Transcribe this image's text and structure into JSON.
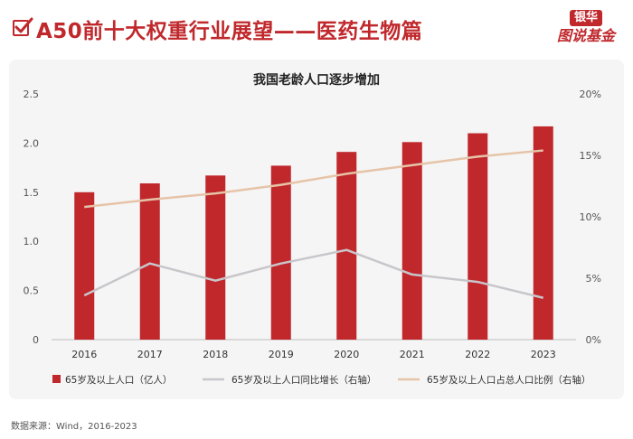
{
  "header": {
    "title": "A50前十大权重行业展望——医药生物篇",
    "brand_top": "银华",
    "brand_bottom": "图说基金"
  },
  "chart_data": {
    "type": "bar",
    "title": "我国老龄人口逐步增加",
    "categories": [
      "2016",
      "2017",
      "2018",
      "2019",
      "2020",
      "2021",
      "2022",
      "2023"
    ],
    "series": [
      {
        "name": "65岁及以上人口（亿人）",
        "kind": "bar",
        "axis": "left",
        "values": [
          1.5,
          1.59,
          1.67,
          1.77,
          1.91,
          2.01,
          2.1,
          2.17
        ],
        "color": "#c0282c"
      },
      {
        "name": "65岁及以上人口同比增长（右轴）",
        "kind": "line",
        "axis": "right",
        "values": [
          3.6,
          6.2,
          4.8,
          6.2,
          7.3,
          5.3,
          4.7,
          3.4
        ],
        "color": "#c9c6cb"
      },
      {
        "name": "65岁及以上人口占总人口比例（右轴）",
        "kind": "line",
        "axis": "right",
        "values": [
          10.8,
          11.4,
          11.9,
          12.6,
          13.5,
          14.2,
          14.9,
          15.4
        ],
        "color": "#e6c4a8"
      }
    ],
    "yleft": {
      "min": 0,
      "max": 2.5,
      "ticks": [
        "0",
        "0.5",
        "1.0",
        "1.5",
        "2.0",
        "2.5"
      ],
      "tick_values": [
        0,
        0.5,
        1.0,
        1.5,
        2.0,
        2.5
      ]
    },
    "yright": {
      "min": 0,
      "max": 20,
      "ticks": [
        "0%",
        "5%",
        "10%",
        "15%",
        "20%"
      ],
      "tick_values": [
        0,
        5,
        10,
        15,
        20
      ]
    },
    "grid": false,
    "legend_position": "bottom"
  },
  "footer": {
    "source": "数据来源：Wind，2016-2023"
  }
}
